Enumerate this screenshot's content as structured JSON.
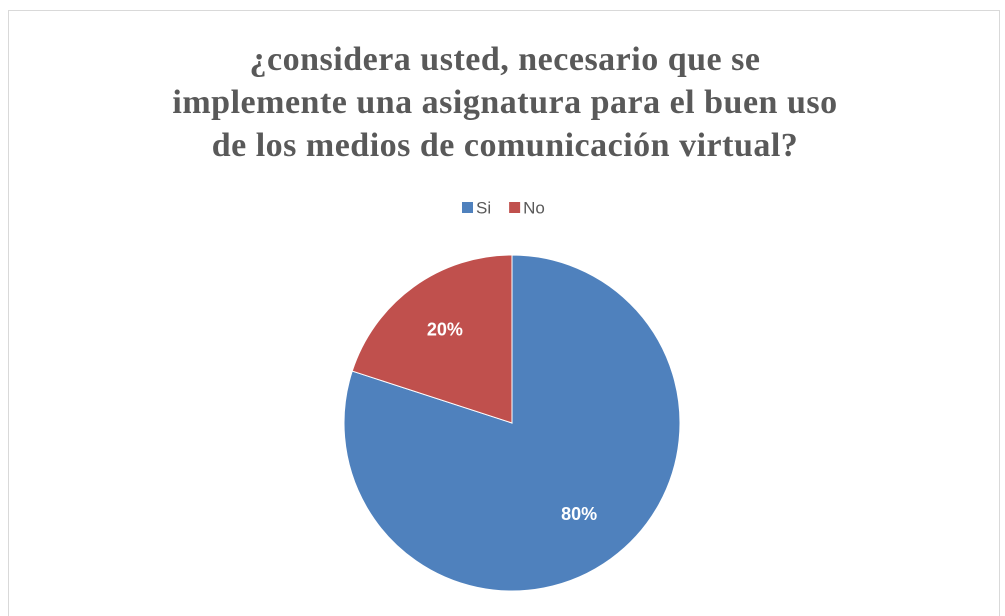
{
  "chart_data": {
    "type": "pie",
    "title": [
      "¿considera usted, necesario que se",
      "implemente  una asignatura para el buen uso",
      "de los medios de comunicación virtual?"
    ],
    "categories": [
      "Si",
      "No"
    ],
    "values": [
      80,
      20
    ],
    "value_labels": [
      "80%",
      "20%"
    ],
    "colors": [
      "#4f81bd",
      "#c0504d"
    ],
    "legend": "top"
  }
}
